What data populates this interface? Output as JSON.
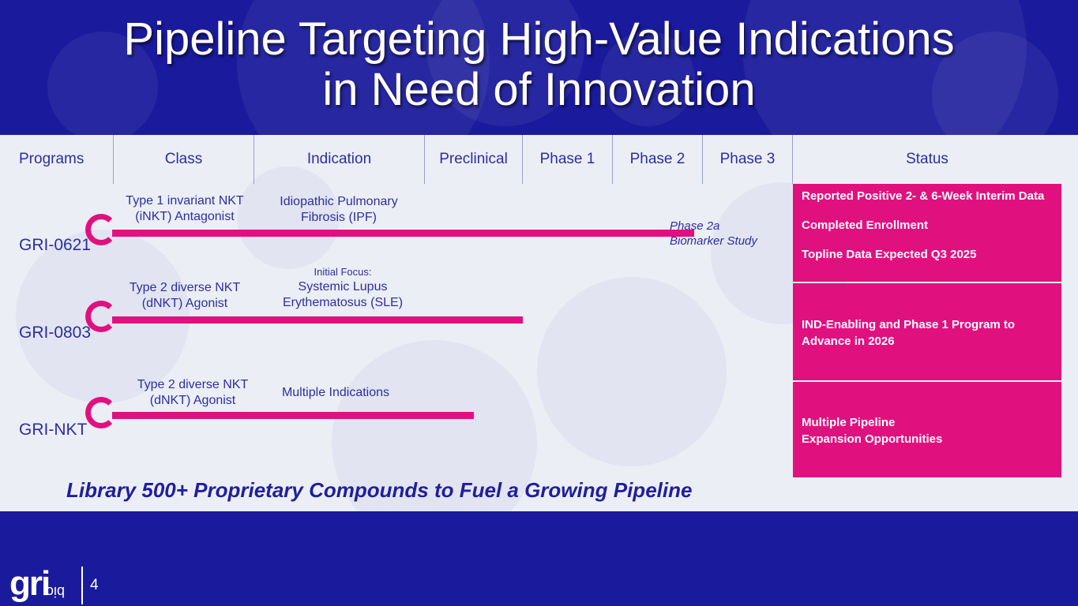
{
  "title": {
    "line1": "Pipeline Targeting High-Value Indications",
    "line2": "in Need of Innovation"
  },
  "headers": {
    "programs": "Programs",
    "class": "Class",
    "indication": "Indication",
    "preclinical": "Preclinical",
    "phase1": "Phase 1",
    "phase2": "Phase 2",
    "phase3": "Phase 3",
    "status": "Status"
  },
  "programs": [
    {
      "name": "GRI-0621",
      "class_line1": "Type 1 invariant NKT",
      "class_line2": "(iNKT) Antagonist",
      "indication_line1": "Idiopathic Pulmonary",
      "indication_line2": "Fibrosis (IPF)",
      "progress_phase": 2.9,
      "phase_note_line1": "Phase 2a",
      "phase_note_line2": "Biomarker Study",
      "status": [
        "Reported Positive 2- & 6-Week Interim Data",
        "Completed Enrollment",
        "Topline Data Expected Q3 2025"
      ]
    },
    {
      "name": "GRI-0803",
      "class_line1": "Type 2 diverse NKT",
      "class_line2": "(dNKT) Agonist",
      "indication_note": "Initial Focus:",
      "indication_line1": "Systemic Lupus",
      "indication_line2": "Erythematosus (SLE)",
      "progress_phase": 1.0,
      "status": [
        "IND-Enabling and Phase 1 Program to Advance in 2026"
      ]
    },
    {
      "name": "GRI-NKT",
      "class_line1": "Type 2 diverse NKT",
      "class_line2": "(dNKT) Agonist",
      "indication_line1": "Multiple Indications",
      "progress_phase": 0.5,
      "status_line1": "Multiple Pipeline",
      "status_line2": "Expansion Opportunities"
    }
  ],
  "tagline": "Library 500+ Proprietary Compounds to Fuel a Growing Pipeline",
  "footer": {
    "logo_main": "gri",
    "logo_sub": "bio",
    "page_number": "4"
  },
  "colors": {
    "background": "#1a1a9c",
    "accent": "#e0117f",
    "panel": "#eceef6",
    "text": "#2b2f9e"
  }
}
